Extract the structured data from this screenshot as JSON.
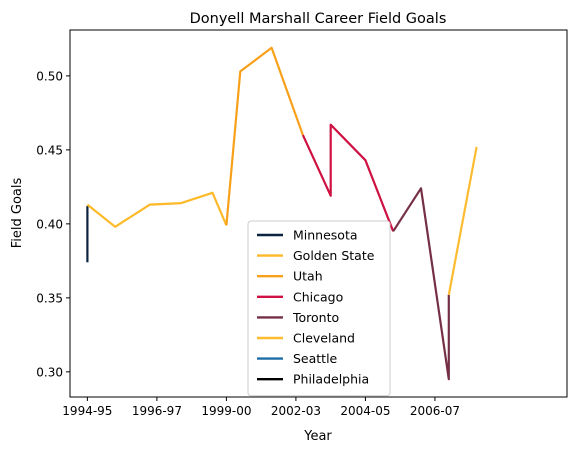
{
  "chart_data": {
    "type": "line",
    "title": "Donyell Marshall Career Field Goals",
    "xlabel": "Year",
    "ylabel": "Field Goals",
    "xlim": [
      1994.5,
      2008.8
    ],
    "ylim": [
      0.283,
      0.531
    ],
    "x_ticks": [
      {
        "value": 1995.0,
        "label": "1994-95"
      },
      {
        "value": 1997.0,
        "label": "1996-97"
      },
      {
        "value": 1999.0,
        "label": "1999-00"
      },
      {
        "value": 2001.0,
        "label": "2002-03"
      },
      {
        "value": 2003.0,
        "label": "2004-05"
      },
      {
        "value": 2005.0,
        "label": "2006-07"
      }
    ],
    "y_ticks": [
      0.3,
      0.35,
      0.4,
      0.45,
      0.5
    ],
    "y_tick_labels": [
      "0.30",
      "0.35",
      "0.40",
      "0.45",
      "0.50"
    ],
    "grid": false,
    "legend_position": "lower-center",
    "series": [
      {
        "name": "Minnesota",
        "color": "#0c2340",
        "points": [
          [
            1995.0,
            0.374
          ],
          [
            1995.0,
            0.412
          ]
        ]
      },
      {
        "name": "Golden State",
        "color": "#fdb927",
        "points": [
          [
            1995.0,
            0.413
          ],
          [
            1995.8,
            0.398
          ],
          [
            1996.8,
            0.413
          ],
          [
            1997.7,
            0.414
          ],
          [
            1998.6,
            0.421
          ],
          [
            1999.0,
            0.399
          ]
        ]
      },
      {
        "name": "Utah",
        "color": "#f9a01b",
        "points": [
          [
            1999.0,
            0.399
          ],
          [
            1999.4,
            0.503
          ],
          [
            2000.3,
            0.519
          ],
          [
            2001.2,
            0.46
          ]
        ]
      },
      {
        "name": "Chicago",
        "color": "#ce1141",
        "points": [
          [
            2001.2,
            0.46
          ],
          [
            2002.0,
            0.419
          ],
          [
            2002.0,
            0.467
          ],
          [
            2003.0,
            0.443
          ],
          [
            2003.8,
            0.395
          ]
        ]
      },
      {
        "name": "Toronto",
        "color": "#753045",
        "points": [
          [
            2003.8,
            0.395
          ],
          [
            2004.6,
            0.424
          ],
          [
            2005.4,
            0.295
          ],
          [
            2005.4,
            0.352
          ]
        ]
      },
      {
        "name": "Cleveland",
        "color": "#fdbb30",
        "points": [
          [
            2005.4,
            0.352
          ],
          [
            2006.2,
            0.452
          ]
        ]
      },
      {
        "name": "Seattle",
        "color": "#00653a",
        "legend_color": "#1f6fa8",
        "points": []
      },
      {
        "name": "Philadelphia",
        "color": "#000000",
        "points": []
      }
    ]
  }
}
